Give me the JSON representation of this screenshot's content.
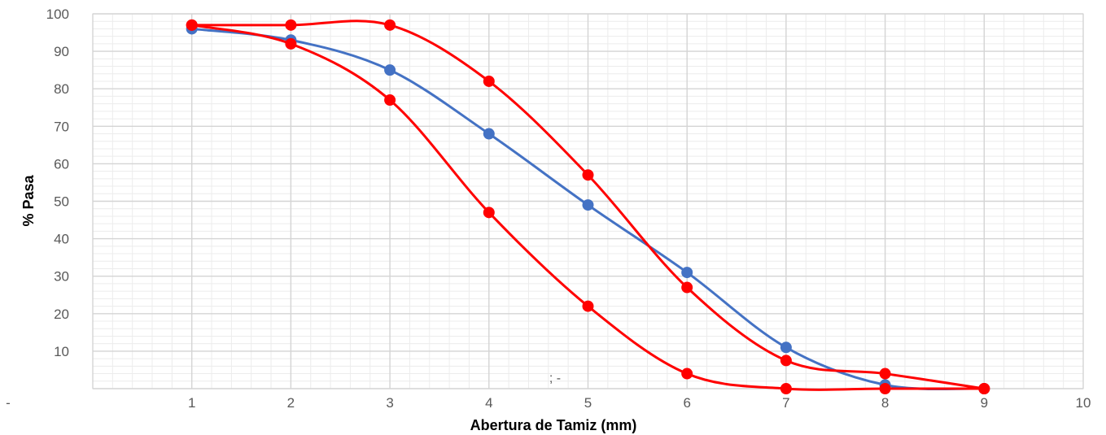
{
  "chart_data": {
    "type": "line",
    "title": "",
    "xlabel": "Abertura de Tamiz (mm)",
    "ylabel": "% Pasa",
    "xlim": [
      0,
      10
    ],
    "ylim": [
      0,
      100
    ],
    "x_tick_labels": [
      "1",
      "2",
      "3",
      "4",
      "5",
      "6",
      "7",
      "8",
      "9",
      "10"
    ],
    "y_tick_labels": [
      "10",
      "20",
      "30",
      "40",
      "50",
      "60",
      "70",
      "80",
      "90",
      "100"
    ],
    "y_zero_label": "-",
    "annotation": "; -",
    "grid": {
      "major": true,
      "minor": true
    },
    "legend": "none",
    "smooth": true,
    "series": [
      {
        "color": "#4472C4",
        "x": [
          1,
          2,
          3,
          4,
          5,
          6,
          7,
          8,
          9
        ],
        "y": [
          96,
          93,
          85,
          68,
          49,
          31,
          11,
          1,
          0
        ]
      },
      {
        "color": "#FF0000",
        "x": [
          1,
          2,
          3,
          4,
          5,
          6,
          7,
          8,
          9
        ],
        "y": [
          97,
          97,
          97,
          82,
          57,
          27,
          7.5,
          4,
          0
        ]
      },
      {
        "color": "#FF0000",
        "x": [
          1,
          2,
          3,
          4,
          5,
          6,
          7,
          8,
          9
        ],
        "y": [
          97,
          92,
          77,
          47,
          22,
          4,
          0,
          0,
          0
        ]
      }
    ]
  }
}
